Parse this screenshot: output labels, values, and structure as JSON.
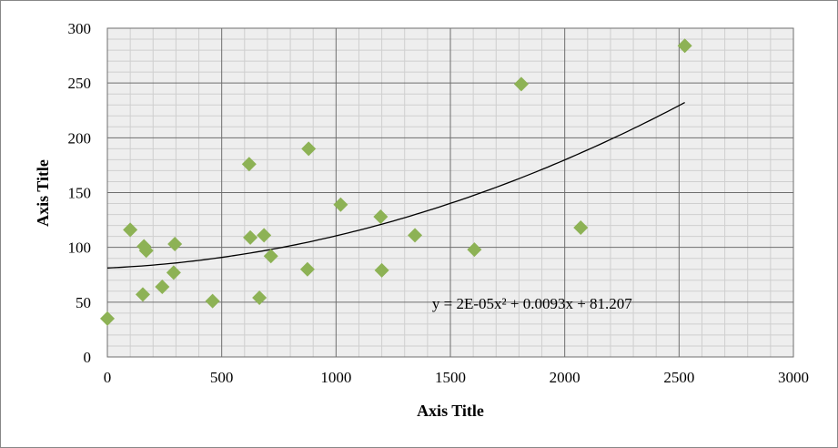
{
  "chart_data": {
    "type": "scatter",
    "xlabel": "Axis Title",
    "ylabel": "Axis Title",
    "xlim": [
      0,
      3000
    ],
    "ylim": [
      0,
      300
    ],
    "x_major_step": 500,
    "x_minor_step": 100,
    "y_major_step": 50,
    "y_minor_step": 10,
    "grid": true,
    "legend": "none",
    "x_ticks": [
      "0",
      "500",
      "1000",
      "1500",
      "2000",
      "2500",
      "3000"
    ],
    "y_ticks": [
      "0",
      "50",
      "100",
      "150",
      "200",
      "250",
      "300"
    ],
    "marker_color": "#8db255",
    "marker_shape": "diamond",
    "major_grid_color": "#6e6e6e",
    "minor_grid_color": "#cfcfcf",
    "plot_background": "#eeeeee",
    "series": [
      {
        "points": [
          [
            0,
            35
          ],
          [
            100,
            116
          ],
          [
            155,
            57
          ],
          [
            160,
            101
          ],
          [
            170,
            97
          ],
          [
            240,
            64
          ],
          [
            290,
            77
          ],
          [
            295,
            103
          ],
          [
            460,
            51
          ],
          [
            620,
            176
          ],
          [
            625,
            109
          ],
          [
            665,
            54
          ],
          [
            685,
            111
          ],
          [
            715,
            92
          ],
          [
            875,
            80
          ],
          [
            880,
            190
          ],
          [
            1020,
            139
          ],
          [
            1195,
            128
          ],
          [
            1200,
            79
          ],
          [
            1345,
            111
          ],
          [
            1605,
            98
          ],
          [
            1810,
            249
          ],
          [
            2070,
            118
          ],
          [
            2525,
            284
          ]
        ]
      }
    ],
    "trendline": {
      "type": "polynomial",
      "order": 2,
      "coefficients": [
        2e-05,
        0.0093,
        81.207
      ],
      "x_range": [
        0,
        2525
      ],
      "color": "#000000",
      "equation_text": "y = 2E-05x² + 0.0093x + 81.207",
      "equation_anchor": [
        1420,
        44
      ]
    }
  }
}
